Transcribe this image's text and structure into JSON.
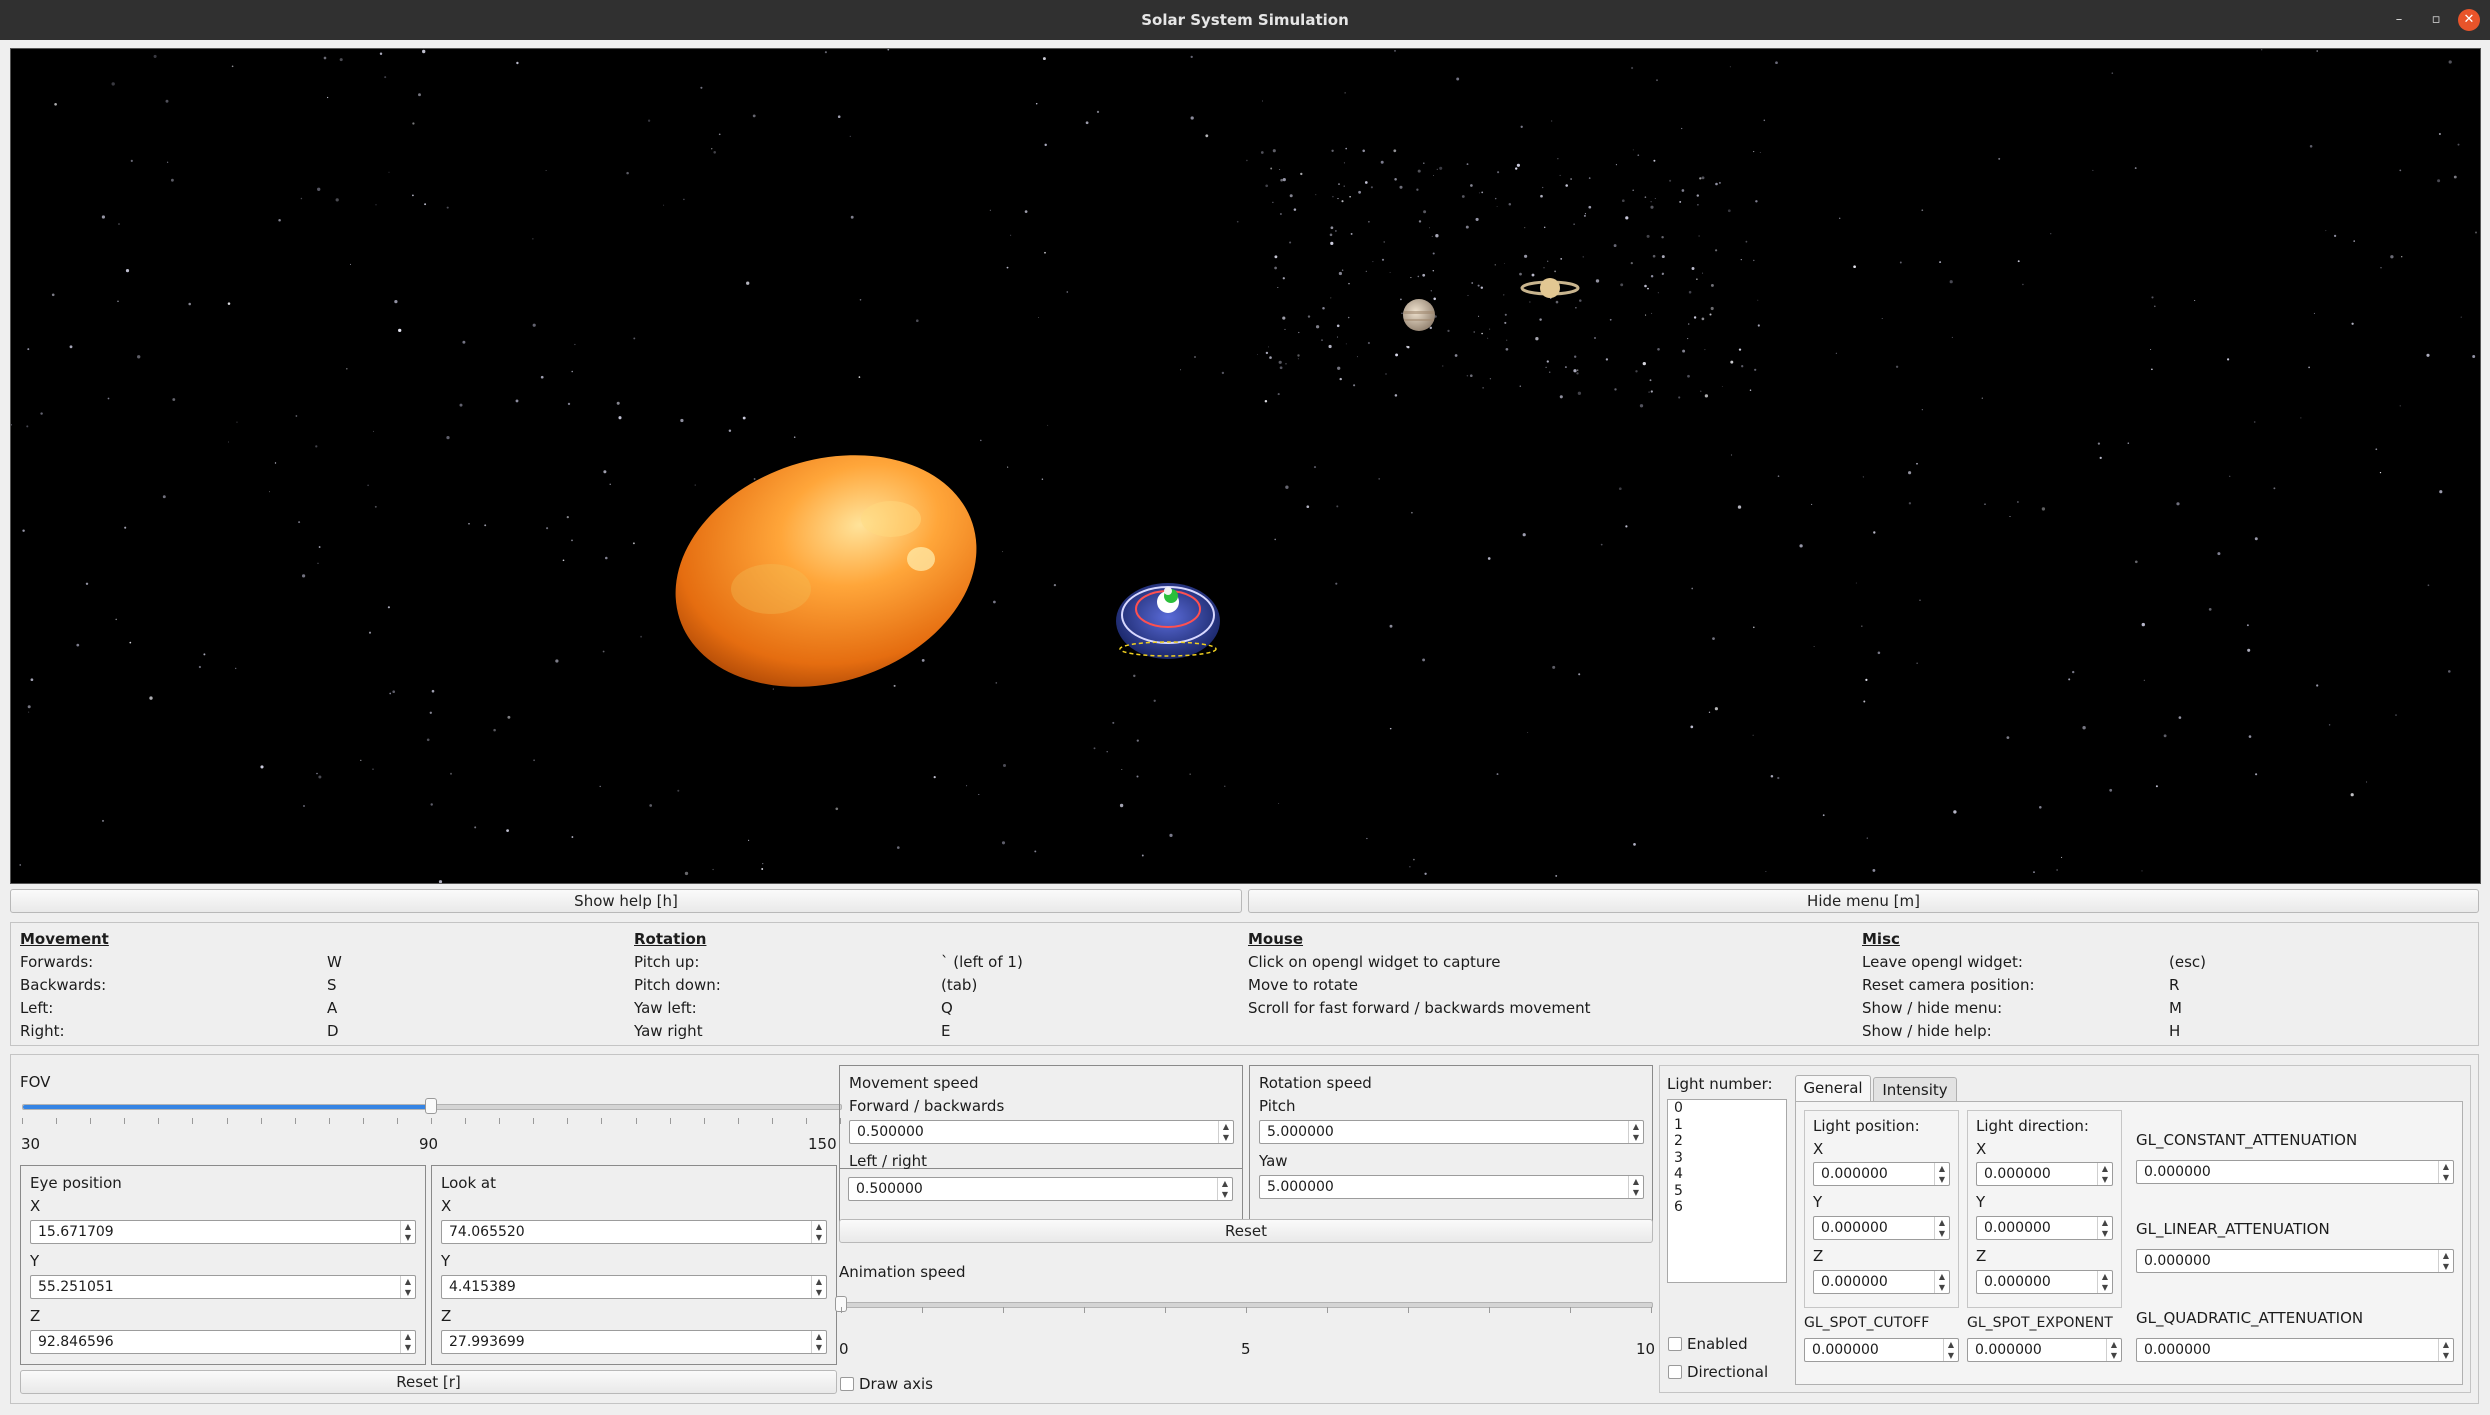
{
  "window": {
    "title": "Solar System Simulation",
    "minimize": "–",
    "maximize": "▫",
    "close": "✕"
  },
  "scene": {
    "description_icons": [
      "sun-planet",
      "jupiter-planet",
      "saturn-planet",
      "spaceship"
    ],
    "colors": {
      "space": "#000000",
      "sun_outer": "#e0761a",
      "sun_inner": "#ffb648"
    }
  },
  "buttons": {
    "show_help": "Show help [h]",
    "hide_menu": "Hide menu [m]"
  },
  "help": {
    "movement": {
      "heading": "Movement",
      "rows": [
        {
          "action": "Forwards:",
          "key": "W"
        },
        {
          "action": "Backwards:",
          "key": "S"
        },
        {
          "action": "Left:",
          "key": "A"
        },
        {
          "action": "Right:",
          "key": "D"
        }
      ]
    },
    "rotation": {
      "heading": "Rotation",
      "rows": [
        {
          "action": "Pitch up:",
          "key": "` (left of 1)"
        },
        {
          "action": "Pitch down:",
          "key": "(tab)"
        },
        {
          "action": "Yaw left:",
          "key": "Q"
        },
        {
          "action": "Yaw right",
          "key": "E"
        }
      ]
    },
    "mouse": {
      "heading": "Mouse",
      "rows": [
        "Click on opengl widget to capture",
        "Move to rotate",
        "Scroll for fast forward / backwards movement"
      ]
    },
    "misc": {
      "heading": "Misc",
      "rows": [
        {
          "action": "Leave opengl widget:",
          "key": "(esc)"
        },
        {
          "action": "Reset camera position:",
          "key": "R"
        },
        {
          "action": "Show / hide menu:",
          "key": "M"
        },
        {
          "action": "Show / hide help:",
          "key": "H"
        }
      ]
    }
  },
  "camera": {
    "fov_label": "FOV",
    "fov_value": 90,
    "fov_min_label": "30",
    "fov_mid_label": "90",
    "fov_max_label": "150",
    "eye_position": {
      "title": "Eye position",
      "x_label": "X",
      "y_label": "Y",
      "z_label": "Z",
      "x": "15.671709",
      "y": "55.251051",
      "z": "92.846596"
    },
    "look_at": {
      "title": "Look at",
      "x_label": "X",
      "y_label": "Y",
      "z_label": "Z",
      "x": "74.065520",
      "y": "4.415389",
      "z": "27.993699"
    },
    "reset_label": "Reset [r]"
  },
  "movement_speed": {
    "title": "Movement speed",
    "fb_label": "Forward / backwards",
    "fb_value": "0.500000",
    "lr_label": "Left / right",
    "lr_value": "0.500000"
  },
  "rotation_speed": {
    "title": "Rotation speed",
    "pitch_label": "Pitch",
    "pitch_value": "5.000000",
    "yaw_label": "Yaw",
    "yaw_value": "5.000000"
  },
  "speed_reset_label": "Reset",
  "animation": {
    "label": "Animation speed",
    "value": 0,
    "min_label": "0",
    "mid_label": "5",
    "max_label": "10",
    "draw_axis_label": "Draw axis"
  },
  "light": {
    "number_label": "Light number:",
    "numbers": [
      "0",
      "1",
      "2",
      "3",
      "4",
      "5",
      "6"
    ],
    "enabled_label": "Enabled",
    "directional_label": "Directional",
    "tabs": [
      "General",
      "Intensity"
    ],
    "position": {
      "title": "Light position:",
      "x_label": "X",
      "y_label": "Y",
      "z_label": "Z",
      "x": "0.000000",
      "y": "0.000000",
      "z": "0.000000"
    },
    "direction": {
      "title": "Light direction:",
      "x_label": "X",
      "y_label": "Y",
      "z_label": "Z",
      "x": "0.000000",
      "y": "0.000000",
      "z": "0.000000"
    },
    "constant_label": "GL_CONSTANT_ATTENUATION",
    "constant_value": "0.000000",
    "linear_label": "GL_LINEAR_ATTENUATION",
    "linear_value": "0.000000",
    "quadratic_label": "GL_QUADRATIC_ATTENUATION",
    "quadratic_value": "0.000000",
    "spot_cutoff_label": "GL_SPOT_CUTOFF",
    "spot_cutoff_value": "0.000000",
    "spot_exponent_label": "GL_SPOT_EXPONENT",
    "spot_exponent_value": "0.000000"
  }
}
